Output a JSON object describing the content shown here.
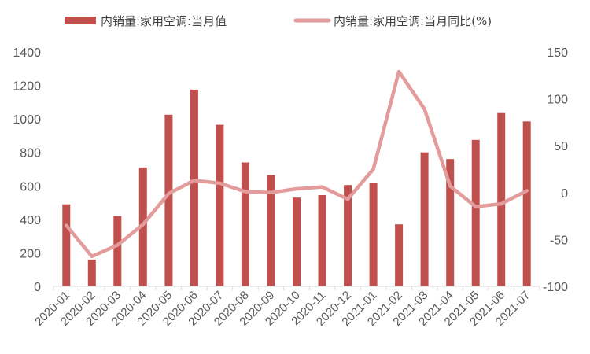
{
  "chart_data": {
    "type": "bar",
    "categories": [
      "2020-01",
      "2020-02",
      "2020-03",
      "2020-04",
      "2020-05",
      "2020-06",
      "2020-07",
      "2020-08",
      "2020-09",
      "2020-10",
      "2020-11",
      "2020-12",
      "2021-01",
      "2021-02",
      "2021-03",
      "2021-04",
      "2021-05",
      "2021-06",
      "2021-07"
    ],
    "series": [
      {
        "name": "内销量:家用空调:当月值",
        "type": "bar",
        "axis": "left",
        "color": "#c0504d",
        "values": [
          490,
          160,
          420,
          710,
          1025,
          1175,
          965,
          740,
          665,
          530,
          545,
          605,
          620,
          370,
          800,
          760,
          875,
          1035,
          985
        ]
      },
      {
        "name": "内销量:家用空调:当月同比(%)",
        "type": "line",
        "axis": "right",
        "color": "#e39b9b",
        "values": [
          -35,
          -68,
          -56,
          -34,
          -1,
          13,
          10,
          1,
          0,
          4,
          6,
          -7,
          25,
          129,
          89,
          7,
          -15,
          -12,
          2
        ]
      }
    ],
    "y_left": {
      "lim": [
        0,
        1400
      ],
      "ticks": [
        "0",
        "200",
        "400",
        "600",
        "800",
        "1000",
        "1200",
        "1400"
      ]
    },
    "y_right": {
      "lim": [
        -100,
        150
      ],
      "ticks": [
        "-100",
        "-50",
        "0",
        "50",
        "100",
        "150"
      ]
    },
    "title": "",
    "xlabel": "",
    "ylabel": "",
    "grid": false,
    "legend_position": "top"
  }
}
